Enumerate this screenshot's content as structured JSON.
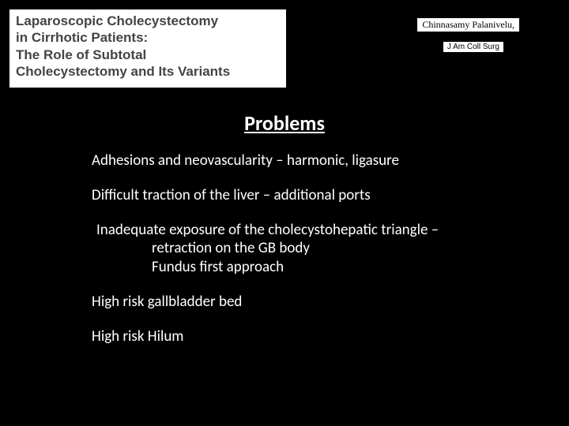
{
  "header": {
    "title_lines": [
      "Laparoscopic Cholecystectomy",
      "in Cirrhotic Patients:",
      "The Role of Subtotal",
      "Cholecystectomy and Its Variants"
    ],
    "author": "Chinnasamy Palanivelu,",
    "journal": "J Am Coll Surg"
  },
  "section_title": "Problems",
  "problems": {
    "p1": "Adhesions and neovascularity – harmonic, ligasure",
    "p2": "Difficult traction of the liver – additional ports",
    "p3_lead": "Inadequate exposure of the cholecystohepatic triangle –",
    "p3_sub1": "retraction on the GB body",
    "p3_sub2": "Fundus first approach",
    "p4": "High risk gallbladder bed",
    "p5": "High risk Hilum"
  },
  "colors": {
    "background": "#000000",
    "text": "#ffffff",
    "header_bg": "#ffffff",
    "header_text": "#444444"
  }
}
